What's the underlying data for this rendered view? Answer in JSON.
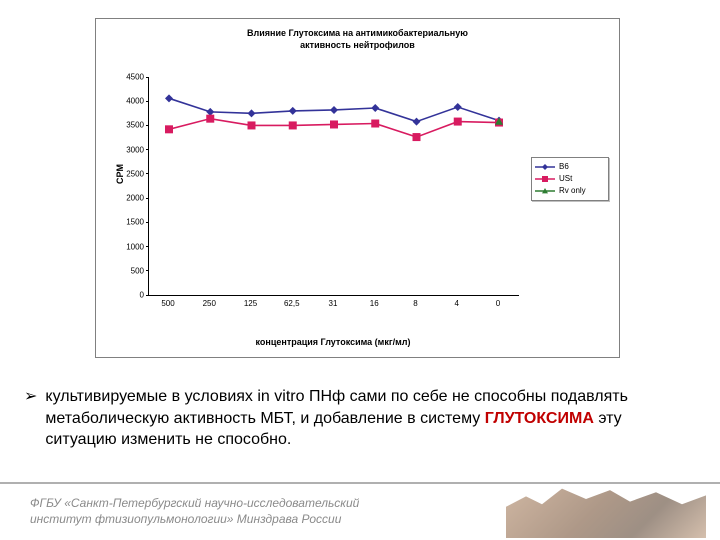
{
  "chart": {
    "title": "Влияние Глутоксима на антимикобактериальную\nактивность нейтрофилов",
    "ylabel": "CPM",
    "xlabel": "концентрация Глутоксима (мкг/мл)",
    "xlim": [
      0,
      10
    ],
    "ylim": [
      0,
      4500
    ],
    "ytick_step": 500,
    "yticks": [
      0,
      500,
      1000,
      1500,
      2000,
      2500,
      3000,
      3500,
      4000,
      4500
    ],
    "categories": [
      "500",
      "250",
      "125",
      "62,5",
      "31",
      "16",
      "8",
      "4",
      "0"
    ],
    "series": [
      {
        "name": "B6",
        "color": "#333399",
        "marker": "diamond",
        "values": [
          4060,
          3780,
          3750,
          3800,
          3820,
          3860,
          3580,
          3880,
          3600
        ]
      },
      {
        "name": "USt",
        "color": "#d81b60",
        "marker": "square",
        "values": [
          3420,
          3640,
          3500,
          3500,
          3520,
          3540,
          3260,
          3580,
          3560
        ]
      },
      {
        "name": "Rv only",
        "color": "#2e7d32",
        "marker": "triangle",
        "values": [
          null,
          null,
          null,
          null,
          null,
          null,
          null,
          null,
          3580
        ]
      }
    ],
    "title_fontsize": 9,
    "label_fontsize": 9,
    "tick_fontsize": 8,
    "line_width": 1.6,
    "marker_size": 4,
    "background_color": "#ffffff"
  },
  "body": {
    "bullet": "➢",
    "text_pre": "культивируемые в условиях in vitro ПНф сами по себе не способны подавлять метаболическую активность МБТ, и добавление в систему ",
    "highlight_word": "ГЛУТОКСИМА",
    "highlight_color": "#c00000",
    "text_post": " эту ситуацию изменить не способно."
  },
  "footer": {
    "line1": "ФГБУ «Санкт-Петербургский научно-исследовательский",
    "line2": "институт фтизиопульмонологии» Минздрава России"
  }
}
